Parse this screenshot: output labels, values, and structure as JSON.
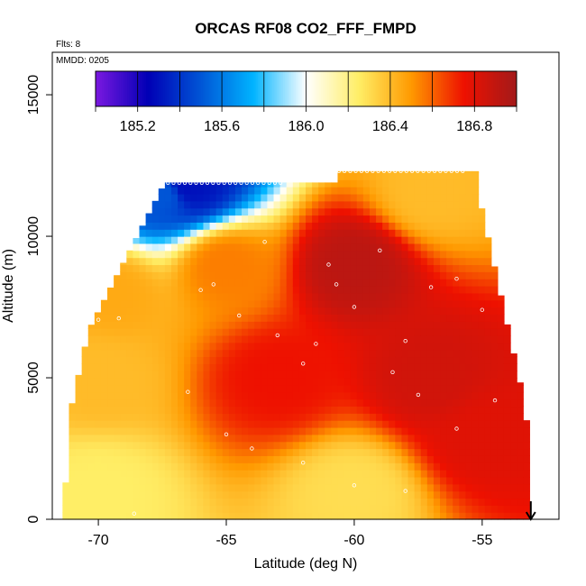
{
  "chart_data": {
    "type": "heatmap",
    "title": "ORCAS RF08 CO2_FFF_FMPD",
    "annotations": {
      "flights": "Flts: 8",
      "mmdd": "MMDD: 0205"
    },
    "xlabel": "Latitude (deg N)",
    "ylabel": "Altitude (m)",
    "xlim": [
      -71.8,
      -52.0
    ],
    "ylim": [
      0,
      16500
    ],
    "x_ticks": [
      -70,
      -65,
      -60,
      -55
    ],
    "x_tick_labels": [
      "-70",
      "-65",
      "-60",
      "-55"
    ],
    "y_ticks": [
      0,
      5000,
      10000,
      15000
    ],
    "y_tick_labels": [
      "0",
      "5000",
      "10000",
      "15000"
    ],
    "colorbar": {
      "min": 185.0,
      "max": 187.0,
      "ticks": [
        185.2,
        185.6,
        186.0,
        186.4,
        186.8
      ],
      "tick_labels": [
        "185.2",
        "185.6",
        "186.0",
        "186.4",
        "186.8"
      ],
      "colors": [
        "#7b18e0",
        "#0000b5",
        "#0055d6",
        "#00b4ff",
        "#ffffff",
        "#ffee66",
        "#ff9900",
        "#ee1100",
        "#a31a1a"
      ],
      "placement": "top inside plot"
    },
    "grid": false,
    "field_description_points": [
      {
        "lat": -70.0,
        "alt": 1000,
        "value": 186.25
      },
      {
        "lat": -70.0,
        "alt": 5000,
        "value": 186.4
      },
      {
        "lat": -69.5,
        "alt": 8000,
        "value": 186.45
      },
      {
        "lat": -67.5,
        "alt": 11500,
        "value": 185.5
      },
      {
        "lat": -66.5,
        "alt": 11800,
        "value": 185.3
      },
      {
        "lat": -65.0,
        "alt": 9000,
        "value": 186.55
      },
      {
        "lat": -63.0,
        "alt": 5000,
        "value": 186.75
      },
      {
        "lat": -60.0,
        "alt": 9000,
        "value": 186.92
      },
      {
        "lat": -57.0,
        "alt": 5000,
        "value": 186.85
      },
      {
        "lat": -55.0,
        "alt": 3000,
        "value": 186.8
      },
      {
        "lat": -60.0,
        "alt": 1000,
        "value": 186.3
      },
      {
        "lat": -57.0,
        "alt": 11500,
        "value": 186.4
      }
    ],
    "arrow_marker": {
      "lat": -53.1,
      "direction": "down"
    }
  }
}
